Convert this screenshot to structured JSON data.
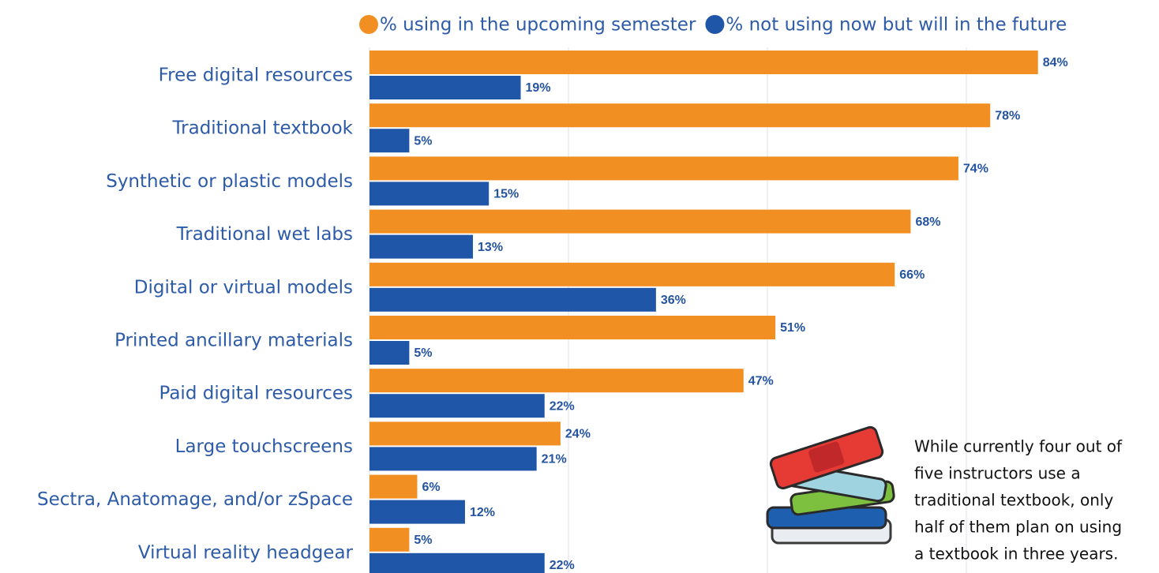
{
  "chart_data": {
    "type": "barh",
    "categories": [
      "Free digital resources",
      "Traditional textbook",
      "Synthetic or plastic models",
      "Traditional wet labs",
      "Digital or virtual models",
      "Printed ancillary materials",
      "Paid digital resources",
      "Large touchscreens",
      "Sectra, Anatomage, and/or zSpace",
      "Virtual reality headgear"
    ],
    "series": [
      {
        "name": "% using in the upcoming semester",
        "color": "#f28f22",
        "values": [
          84,
          78,
          74,
          68,
          66,
          51,
          47,
          24,
          6,
          5
        ],
        "value_labels": [
          "84%",
          "78%",
          "74%",
          "68%",
          "66%",
          "51%",
          "47%",
          "24%",
          "6%",
          "5%"
        ]
      },
      {
        "name": "% not using now but will in the future",
        "color": "#1f56a8",
        "values": [
          19,
          5,
          15,
          13,
          36,
          5,
          22,
          21,
          12,
          22
        ],
        "value_labels": [
          "19%",
          "5%",
          "15%",
          "13%",
          "36%",
          "5%",
          "22%",
          "21%",
          "12%",
          "22%"
        ]
      }
    ],
    "xlim": [
      0,
      100
    ],
    "xticks": [
      0,
      25,
      50,
      75,
      100
    ],
    "grid": true,
    "legend": "top",
    "annotation": [
      "While currently four out of",
      "five instructors use a",
      "traditional textbook, only",
      "half of them plan on using",
      "a textbook in three years."
    ]
  }
}
